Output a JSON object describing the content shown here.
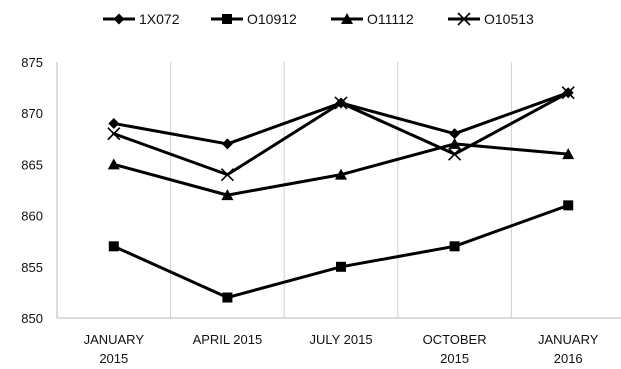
{
  "chart_data": {
    "type": "line",
    "title": "",
    "xlabel": "",
    "ylabel": "",
    "categories": [
      [
        "JANUARY",
        "2015"
      ],
      [
        "APRIL 2015"
      ],
      [
        "JULY 2015"
      ],
      [
        "OCTOBER",
        "2015"
      ],
      [
        "JANUARY",
        "2016"
      ]
    ],
    "ylim": [
      850,
      875
    ],
    "yticks": [
      850,
      855,
      860,
      865,
      870,
      875
    ],
    "grid": "vertical",
    "legend_position": "top",
    "series": [
      {
        "name": "1X072",
        "marker": "diamond",
        "color": "#000000",
        "values": [
          869,
          867,
          871,
          868,
          872
        ]
      },
      {
        "name": "O10912",
        "marker": "square",
        "color": "#000000",
        "values": [
          857,
          852,
          855,
          857,
          861
        ]
      },
      {
        "name": "O11112",
        "marker": "triangle",
        "color": "#000000",
        "values": [
          865,
          862,
          864,
          867,
          866
        ]
      },
      {
        "name": "O10513",
        "marker": "x",
        "color": "#000000",
        "values": [
          868,
          864,
          871,
          866,
          872
        ]
      }
    ]
  }
}
